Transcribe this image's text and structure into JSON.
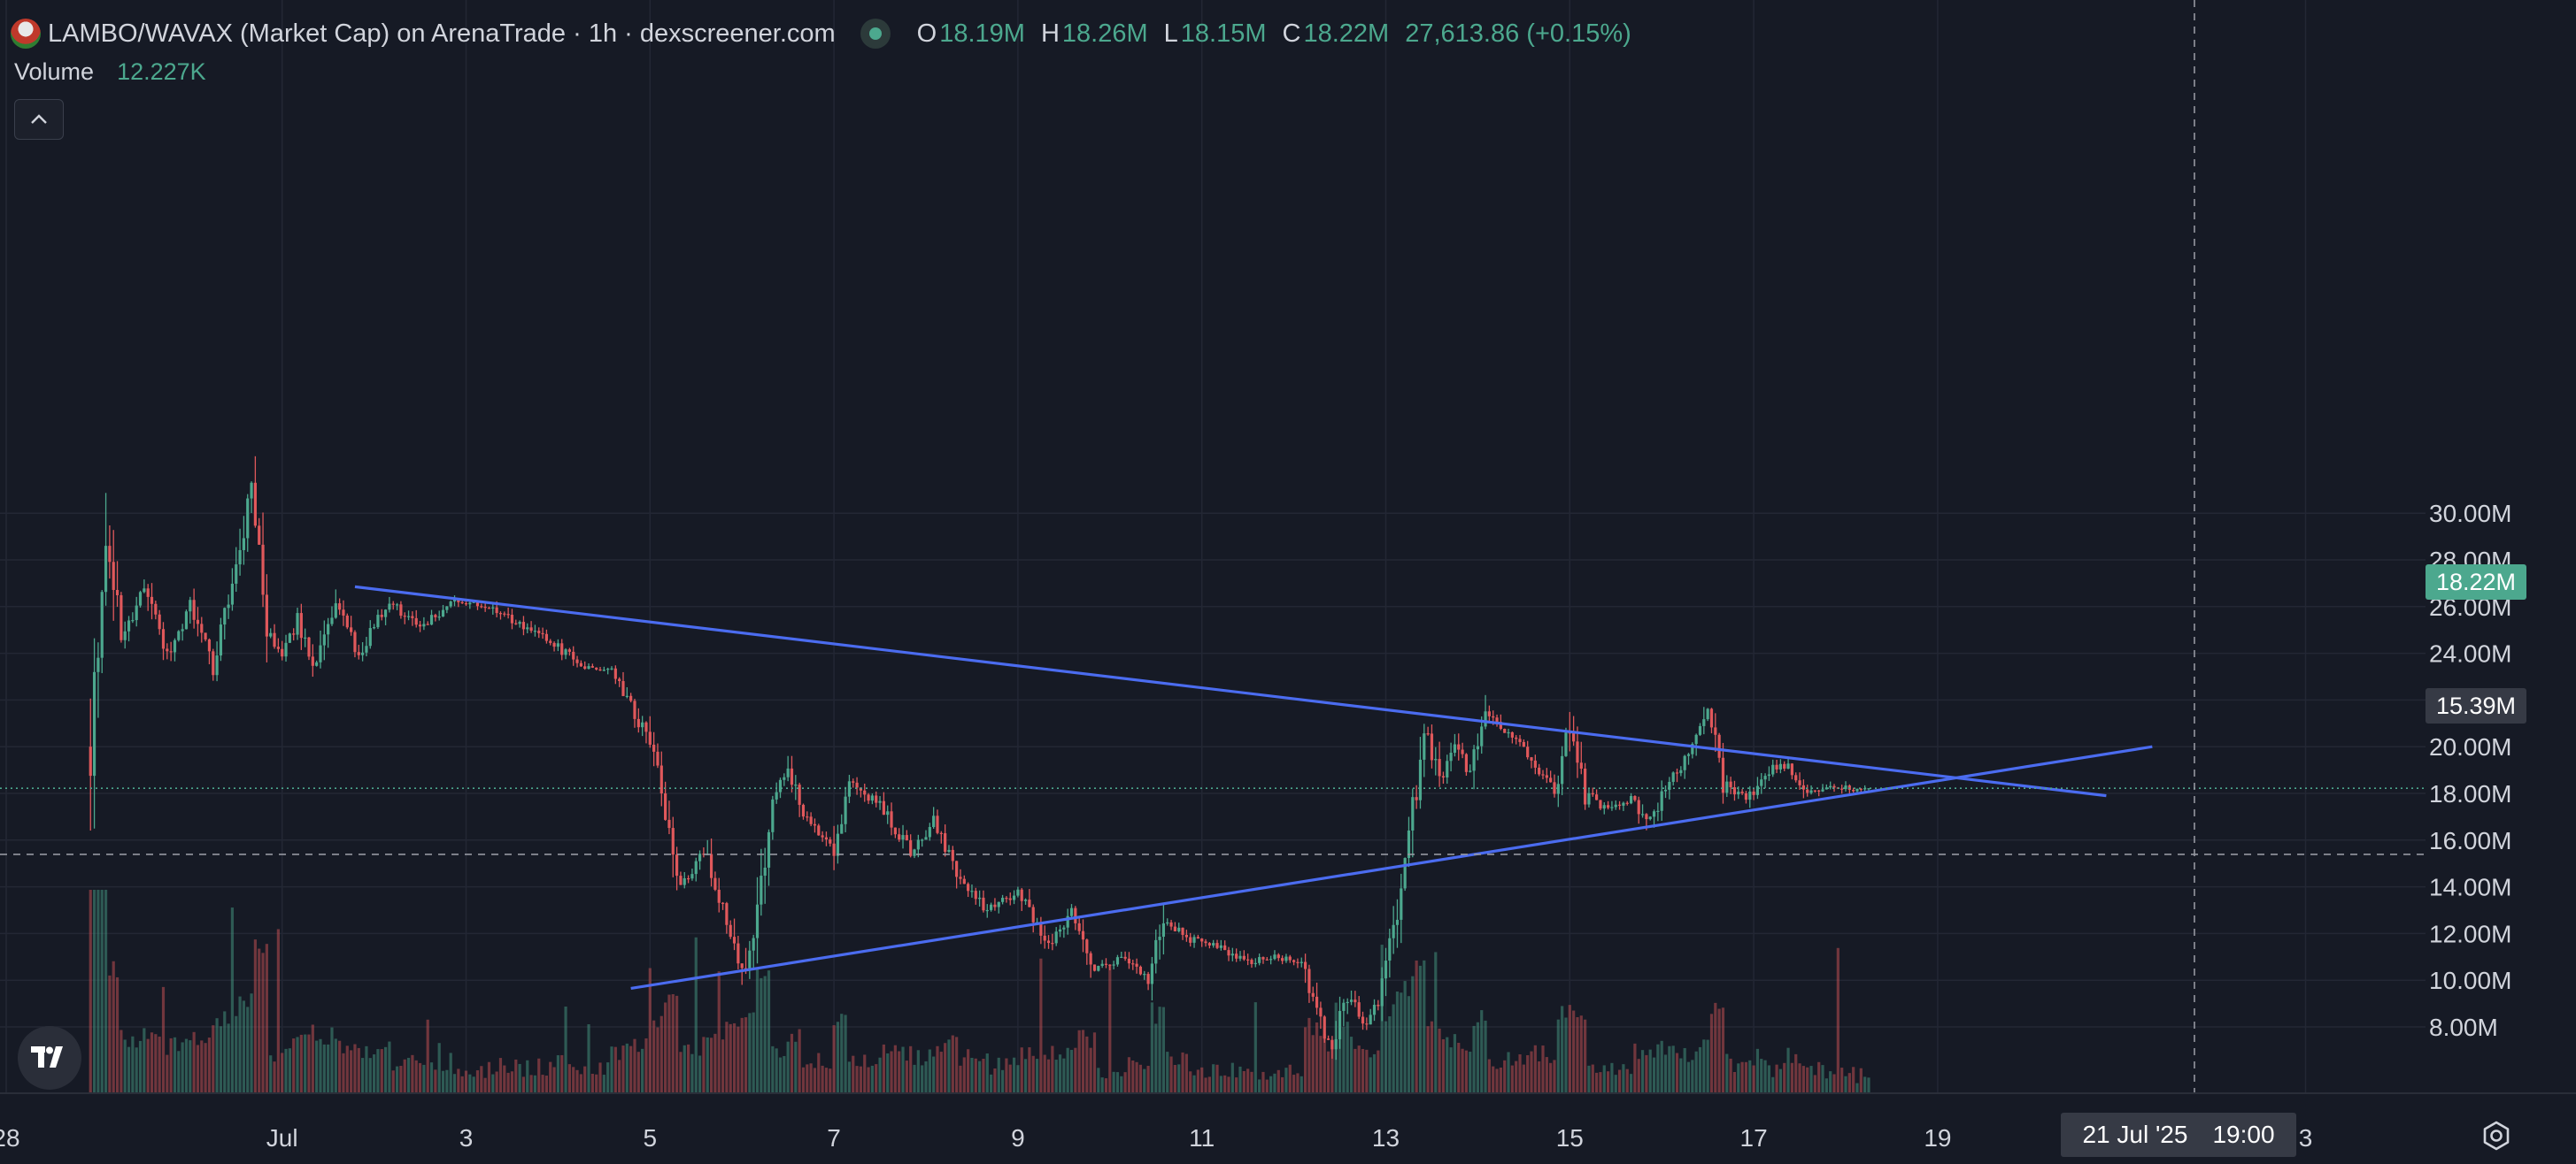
{
  "legend": {
    "title": "LAMBO/WAVAX (Market Cap) on ArenaTrade · 1h · dexscreener.com",
    "open_label": "O",
    "open": "18.19M",
    "high_label": "H",
    "high": "18.26M",
    "low_label": "L",
    "low": "18.15M",
    "close_label": "C",
    "close": "18.22M",
    "change": "27,613.86 (+0.15%)",
    "volume_label": "Volume",
    "volume": "12.227K",
    "logo_icon": "token-logo-icon",
    "status_icon": "market-open-dot-icon"
  },
  "badges": {
    "last_price": "18.22M",
    "crosshair_price": "15.39M",
    "crosshair_date": "21 Jul '25",
    "crosshair_time": "19:00"
  },
  "colors": {
    "background": "#161a25",
    "grid": "#232734",
    "up": "#4ca88e",
    "down": "#e0585b",
    "trendline": "#4b6cf0",
    "text": "#d1d4dc"
  },
  "chart_data": {
    "type": "candlestick",
    "title": "LAMBO/WAVAX (Market Cap) on ArenaTrade · 1h · dexscreener.com",
    "interval": "1h",
    "x_domain": [
      "2025-06-28",
      "2025-07-21"
    ],
    "ylim": [
      6.4,
      31.2
    ],
    "y_unit": "M",
    "y_ticks": [
      "8.00M",
      "10.00M",
      "12.00M",
      "14.00M",
      "16.00M",
      "18.00M",
      "20.00M",
      "22.00M",
      "24.00M",
      "26.00M",
      "28.00M",
      "30.00M"
    ],
    "y_tick_values": [
      8,
      10,
      12,
      14,
      16,
      18,
      20,
      22,
      24,
      26,
      28,
      30
    ],
    "x_tick_labels": [
      "28",
      "Jul",
      "3",
      "5",
      "7",
      "9",
      "11",
      "13",
      "15",
      "17",
      "19",
      "3"
    ],
    "x_tick_dates": [
      "2025-06-28",
      "2025-07-01",
      "2025-07-03",
      "2025-07-05",
      "2025-07-07",
      "2025-07-09",
      "2025-07-11",
      "2025-07-13",
      "2025-07-15",
      "2025-07-17",
      "2025-07-19",
      "2025-07-23"
    ],
    "grid": true,
    "price_path": [
      [
        "2025-06-28 22:00",
        20.0
      ],
      [
        "2025-06-29 02:00",
        29.5
      ],
      [
        "2025-06-29 06:00",
        24.5
      ],
      [
        "2025-06-29 12:00",
        27.0
      ],
      [
        "2025-06-29 18:00",
        24.0
      ],
      [
        "2025-06-30 00:00",
        26.0
      ],
      [
        "2025-06-30 06:00",
        23.5
      ],
      [
        "2025-06-30 12:00",
        27.5
      ],
      [
        "2025-06-30 16:00",
        31.0
      ],
      [
        "2025-06-30 20:00",
        25.0
      ],
      [
        "2025-07-01 00:00",
        24.0
      ],
      [
        "2025-07-01 04:00",
        25.5
      ],
      [
        "2025-07-01 08:00",
        23.2
      ],
      [
        "2025-07-01 14:00",
        26.0
      ],
      [
        "2025-07-01 20:00",
        24.0
      ],
      [
        "2025-07-02 04:00",
        26.3
      ],
      [
        "2025-07-02 12:00",
        25.0
      ],
      [
        "2025-07-02 20:00",
        26.2
      ],
      [
        "2025-07-03 06:00",
        26.0
      ],
      [
        "2025-07-03 14:00",
        25.2
      ],
      [
        "2025-07-03 22:00",
        24.5
      ],
      [
        "2025-07-04 06:00",
        23.5
      ],
      [
        "2025-07-04 14:00",
        23.2
      ],
      [
        "2025-07-04 20:00",
        21.5
      ],
      [
        "2025-07-05 00:00",
        20.0
      ],
      [
        "2025-07-05 04:00",
        17.5
      ],
      [
        "2025-07-05 08:00",
        14.0
      ],
      [
        "2025-07-05 14:00",
        15.5
      ],
      [
        "2025-07-05 20:00",
        12.5
      ],
      [
        "2025-07-06 00:00",
        10.0
      ],
      [
        "2025-07-06 04:00",
        13.0
      ],
      [
        "2025-07-06 08:00",
        18.0
      ],
      [
        "2025-07-06 12:00",
        19.0
      ],
      [
        "2025-07-06 16:00",
        17.0
      ],
      [
        "2025-07-07 00:00",
        15.8
      ],
      [
        "2025-07-07 04:00",
        18.5
      ],
      [
        "2025-07-07 12:00",
        17.5
      ],
      [
        "2025-07-07 20:00",
        15.5
      ],
      [
        "2025-07-08 02:00",
        16.8
      ],
      [
        "2025-07-08 08:00",
        14.5
      ],
      [
        "2025-07-08 16:00",
        13.0
      ],
      [
        "2025-07-09 00:00",
        13.8
      ],
      [
        "2025-07-09 08:00",
        11.5
      ],
      [
        "2025-07-09 14:00",
        13.0
      ],
      [
        "2025-07-09 20:00",
        10.5
      ],
      [
        "2025-07-10 04:00",
        11.0
      ],
      [
        "2025-07-10 10:00",
        10.0
      ],
      [
        "2025-07-10 14:00",
        12.8
      ],
      [
        "2025-07-10 20:00",
        11.8
      ],
      [
        "2025-07-11 04:00",
        11.4
      ],
      [
        "2025-07-11 12:00",
        10.8
      ],
      [
        "2025-07-11 20:00",
        11.0
      ],
      [
        "2025-07-12 02:00",
        10.8
      ],
      [
        "2025-07-12 06:00",
        8.5
      ],
      [
        "2025-07-12 10:00",
        7.0
      ],
      [
        "2025-07-12 14:00",
        9.5
      ],
      [
        "2025-07-12 18:00",
        8.0
      ],
      [
        "2025-07-12 22:00",
        9.0
      ],
      [
        "2025-07-13 02:00",
        12.0
      ],
      [
        "2025-07-13 06:00",
        16.0
      ],
      [
        "2025-07-13 10:00",
        21.0
      ],
      [
        "2025-07-13 14:00",
        18.5
      ],
      [
        "2025-07-13 18:00",
        20.0
      ],
      [
        "2025-07-13 22:00",
        18.8
      ],
      [
        "2025-07-14 02:00",
        21.5
      ],
      [
        "2025-07-14 08:00",
        20.5
      ],
      [
        "2025-07-14 14:00",
        19.5
      ],
      [
        "2025-07-14 20:00",
        18.0
      ],
      [
        "2025-07-15 00:00",
        21.0
      ],
      [
        "2025-07-15 04:00",
        18.0
      ],
      [
        "2025-07-15 10:00",
        17.3
      ],
      [
        "2025-07-15 16:00",
        17.8
      ],
      [
        "2025-07-15 20:00",
        16.6
      ],
      [
        "2025-07-16 02:00",
        18.5
      ],
      [
        "2025-07-16 08:00",
        20.0
      ],
      [
        "2025-07-16 12:00",
        21.5
      ],
      [
        "2025-07-16 16:00",
        18.5
      ],
      [
        "2025-07-16 22:00",
        17.7
      ],
      [
        "2025-07-17 04:00",
        19.0
      ],
      [
        "2025-07-17 08:00",
        19.3
      ],
      [
        "2025-07-17 14:00",
        18.0
      ],
      [
        "2025-07-17 20:00",
        18.3
      ],
      [
        "2025-07-18 02:00",
        18.19
      ],
      [
        "2025-07-18 06:00",
        18.22
      ]
    ],
    "trendlines": [
      {
        "name": "descending-resistance",
        "from": [
          "2025-07-01 19:00",
          26.85
        ],
        "to": [
          "2025-07-20 20:00",
          17.9
        ]
      },
      {
        "name": "ascending-support",
        "from": [
          "2025-07-04 19:00",
          9.65
        ],
        "to": [
          "2025-07-21 08:00",
          20.0
        ]
      }
    ],
    "horizontal_lines": [
      {
        "name": "last-price-line",
        "value": 18.22,
        "style": "dotted"
      },
      {
        "name": "crosshair-price-line",
        "value": 15.39,
        "style": "dashed"
      }
    ],
    "crosshair": {
      "date": "2025-07-21 19:00",
      "value": 15.39
    },
    "volume_unit": "K"
  }
}
